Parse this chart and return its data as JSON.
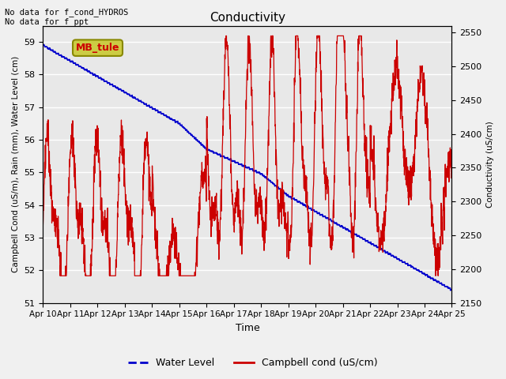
{
  "title": "Conductivity",
  "xlabel": "Time",
  "ylabel_left": "Campbell Cond (uS/m), Rain (mm), Water Level (cm)",
  "ylabel_right": "Conductivity (uS/cm)",
  "annotation_text": "No data for f_cond_HYDROS\nNo data for f_ppt",
  "legend_label": "MB_tule",
  "left_ylim": [
    51.0,
    59.5
  ],
  "right_ylim": [
    2150,
    2560
  ],
  "left_yticks": [
    51.0,
    52.0,
    53.0,
    54.0,
    55.0,
    56.0,
    57.0,
    58.0,
    59.0
  ],
  "right_yticks": [
    2150,
    2200,
    2250,
    2300,
    2350,
    2400,
    2450,
    2500,
    2550
  ],
  "xtick_labels": [
    "Apr 10",
    "Apr 11",
    "Apr 12",
    "Apr 13",
    "Apr 14",
    "Apr 15",
    "Apr 16",
    "Apr 17",
    "Apr 18",
    "Apr 19",
    "Apr 20",
    "Apr 21",
    "Apr 22",
    "Apr 23",
    "Apr 24",
    "Apr 25"
  ],
  "fig_bg_color": "#f0f0f0",
  "plot_bg_color": "#e8e8e8",
  "blue_line_color": "#0000cc",
  "red_line_color": "#cc0000",
  "grid_color": "#ffffff",
  "legend_box_facecolor": "#cccc44",
  "legend_box_edgecolor": "#888800"
}
